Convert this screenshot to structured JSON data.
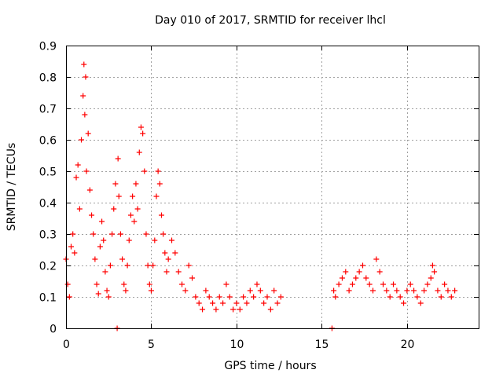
{
  "chart_data": {
    "type": "scatter",
    "title": "Day 010 of 2017, SRMTID for receiver lhcl",
    "xlabel": "GPS time / hours",
    "ylabel": "SRMTID / TECUs",
    "xlim": [
      0,
      24.2
    ],
    "ylim": [
      0,
      0.9
    ],
    "xticks": [
      0,
      5,
      10,
      15,
      20
    ],
    "xtick_labels": [
      "0",
      "5",
      "10",
      "15",
      "20"
    ],
    "yticks": [
      0,
      0.1,
      0.2,
      0.3,
      0.4,
      0.5,
      0.6,
      0.7,
      0.8,
      0.9
    ],
    "ytick_labels": [
      "0",
      "0.1",
      "0.2",
      "0.3",
      "0.4",
      "0.5",
      "0.6",
      "0.7",
      "0.8",
      "0.9"
    ],
    "grid": true,
    "marker": "+",
    "color": "#ff0000",
    "series": [
      {
        "name": "SRMTID",
        "x": [
          0.0,
          0.1,
          0.2,
          0.3,
          0.4,
          0.5,
          0.6,
          0.7,
          0.8,
          0.9,
          1.0,
          1.05,
          1.1,
          1.15,
          1.2,
          1.3,
          1.4,
          1.5,
          1.6,
          1.7,
          1.8,
          1.9,
          2.0,
          2.1,
          2.2,
          2.3,
          2.4,
          2.5,
          2.6,
          2.7,
          2.8,
          2.9,
          3.0,
          3.05,
          3.1,
          3.2,
          3.3,
          3.4,
          3.5,
          3.6,
          3.7,
          3.8,
          3.9,
          4.0,
          4.1,
          4.2,
          4.3,
          4.4,
          4.5,
          4.6,
          4.7,
          4.8,
          4.9,
          5.0,
          5.1,
          5.2,
          5.3,
          5.4,
          5.5,
          5.6,
          5.7,
          5.8,
          5.9,
          6.0,
          6.2,
          6.4,
          6.6,
          6.8,
          7.0,
          7.2,
          7.4,
          7.6,
          7.8,
          8.0,
          8.2,
          8.4,
          8.6,
          8.8,
          9.0,
          9.2,
          9.4,
          9.6,
          9.8,
          10.0,
          10.2,
          10.4,
          10.6,
          10.8,
          11.0,
          11.2,
          11.4,
          11.6,
          11.8,
          12.0,
          12.2,
          12.4,
          12.6,
          15.6,
          15.7,
          15.8,
          16.0,
          16.2,
          16.4,
          16.6,
          16.8,
          17.0,
          17.2,
          17.4,
          17.6,
          17.8,
          18.0,
          18.2,
          18.4,
          18.6,
          18.8,
          19.0,
          19.2,
          19.4,
          19.6,
          19.8,
          20.0,
          20.2,
          20.4,
          20.6,
          20.8,
          21.0,
          21.2,
          21.4,
          21.5,
          21.6,
          21.8,
          22.0,
          22.2,
          22.4,
          22.6,
          22.8
        ],
        "y": [
          0.22,
          0.14,
          0.1,
          0.26,
          0.3,
          0.24,
          0.48,
          0.52,
          0.38,
          0.6,
          0.74,
          0.84,
          0.68,
          0.8,
          0.5,
          0.62,
          0.44,
          0.36,
          0.3,
          0.22,
          0.14,
          0.11,
          0.26,
          0.34,
          0.28,
          0.18,
          0.12,
          0.1,
          0.2,
          0.3,
          0.38,
          0.46,
          0.0,
          0.54,
          0.42,
          0.3,
          0.22,
          0.14,
          0.12,
          0.2,
          0.28,
          0.36,
          0.42,
          0.34,
          0.46,
          0.38,
          0.56,
          0.64,
          0.62,
          0.5,
          0.3,
          0.2,
          0.14,
          0.12,
          0.2,
          0.28,
          0.42,
          0.5,
          0.46,
          0.36,
          0.3,
          0.24,
          0.18,
          0.22,
          0.28,
          0.24,
          0.18,
          0.14,
          0.12,
          0.2,
          0.16,
          0.1,
          0.08,
          0.06,
          0.12,
          0.1,
          0.08,
          0.06,
          0.1,
          0.08,
          0.14,
          0.1,
          0.06,
          0.08,
          0.06,
          0.1,
          0.08,
          0.12,
          0.1,
          0.14,
          0.12,
          0.08,
          0.1,
          0.06,
          0.12,
          0.08,
          0.1,
          0.0,
          0.12,
          0.1,
          0.14,
          0.16,
          0.18,
          0.12,
          0.14,
          0.16,
          0.18,
          0.2,
          0.16,
          0.14,
          0.12,
          0.22,
          0.18,
          0.14,
          0.12,
          0.1,
          0.14,
          0.12,
          0.1,
          0.08,
          0.12,
          0.14,
          0.12,
          0.1,
          0.08,
          0.12,
          0.14,
          0.16,
          0.2,
          0.18,
          0.12,
          0.1,
          0.14,
          0.12,
          0.1,
          0.12
        ]
      }
    ]
  }
}
